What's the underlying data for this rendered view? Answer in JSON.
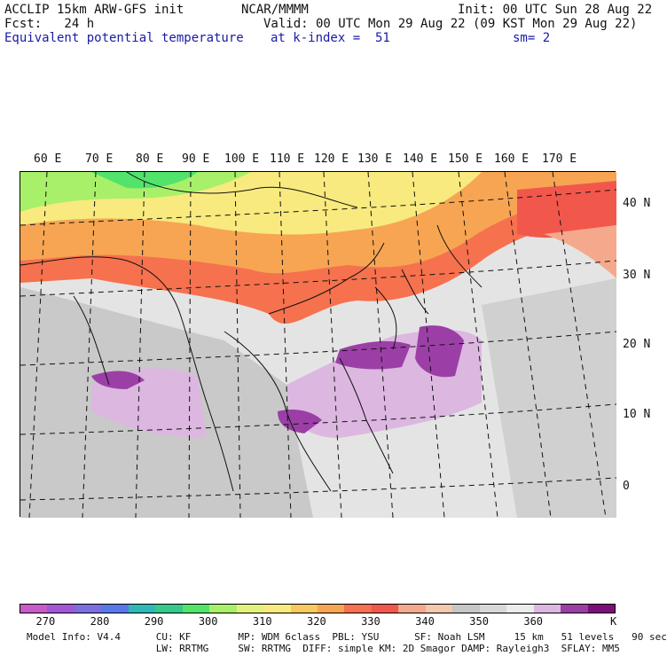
{
  "header": {
    "model": "ACCLIP 15km ARW-GFS init",
    "org": "NCAR/MMMM",
    "init": "Init: 00 UTC Sun 28 Aug 22",
    "fcst": "Fcst:   24 h",
    "valid": "Valid: 00 UTC Mon 29 Aug 22 (09 KST Mon 29 Aug 22)",
    "field": "Equivalent potential temperature",
    "level": "at k-index =  51",
    "smooth": "sm= 2"
  },
  "lon_labels": [
    "60 E",
    "70 E",
    "80 E",
    "90 E",
    "100 E",
    "110 E",
    "120 E",
    "130 E",
    "140 E",
    "150 E",
    "160 E",
    "170 E"
  ],
  "lat_labels": [
    "40 N",
    "30 N",
    "20 N",
    "10 N",
    "0"
  ],
  "colorbar": {
    "colors": [
      "#c75bc8",
      "#a357d6",
      "#7a6ee0",
      "#5878e8",
      "#2fb8b8",
      "#35c98a",
      "#52e36a",
      "#a8f06a",
      "#e3f27a",
      "#f8ea7e",
      "#f7c85e",
      "#f7a552",
      "#f6714e",
      "#f2574c",
      "#f5a98c",
      "#f4c7ae",
      "#c6c6c6",
      "#d8d8d8",
      "#ececec",
      "#dcb7e0",
      "#9b3fa6",
      "#7a0f7a"
    ],
    "ticks": [
      "270",
      "280",
      "290",
      "300",
      "310",
      "320",
      "330",
      "340",
      "350",
      "360"
    ],
    "unit": "K"
  },
  "footer": {
    "line1": "Model Info: V4.4      CU: KF        MP: WDM 6class  PBL: YSU      SF: Noah LSM     15 km   51 levels   90 sec",
    "line2": "                      LW: RRTMG     SW: RRTMG  DIFF: simple KM: 2D Smagor DAMP: Rayleigh3  SFLAY: MM5"
  }
}
